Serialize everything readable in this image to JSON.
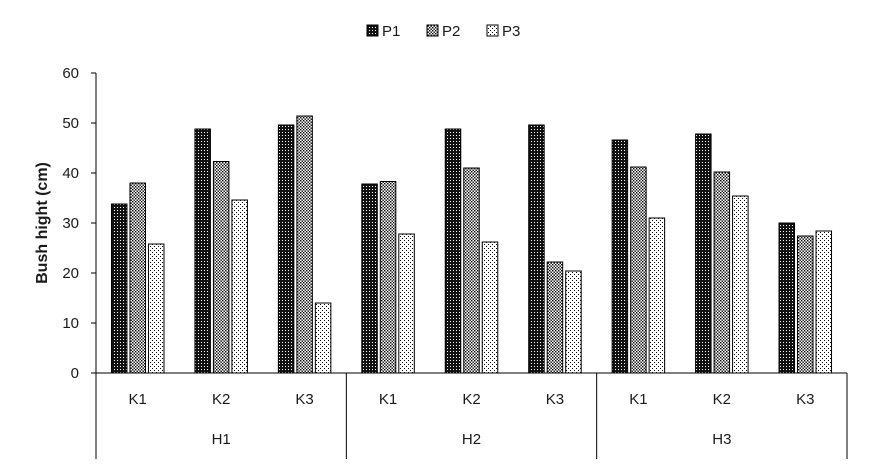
{
  "chart_data": {
    "type": "bar",
    "title": "",
    "xlabel": "",
    "ylabel": "Bush hight (cm)",
    "ylim": [
      0,
      60
    ],
    "yticks": [
      0,
      10,
      20,
      30,
      40,
      50,
      60
    ],
    "grid": false,
    "legend_position": "top-center",
    "groups": [
      {
        "label": "H1",
        "categories": [
          "K1",
          "K2",
          "K3"
        ]
      },
      {
        "label": "H2",
        "categories": [
          "K1",
          "K2",
          "K3"
        ]
      },
      {
        "label": "H3",
        "categories": [
          "K1",
          "K2",
          "K3"
        ]
      }
    ],
    "series": [
      {
        "name": "P1",
        "pattern": "dark-dots",
        "values": [
          33.8,
          48.8,
          49.6,
          37.8,
          48.8,
          49.6,
          46.6,
          47.8,
          30.0
        ]
      },
      {
        "name": "P2",
        "pattern": "medium-dots",
        "values": [
          38.0,
          42.3,
          51.4,
          38.3,
          41.0,
          22.2,
          41.2,
          40.2,
          27.4
        ]
      },
      {
        "name": "P3",
        "pattern": "light-dots",
        "values": [
          25.8,
          34.6,
          14.0,
          27.8,
          26.2,
          20.4,
          31.0,
          35.4,
          28.4
        ]
      }
    ]
  }
}
